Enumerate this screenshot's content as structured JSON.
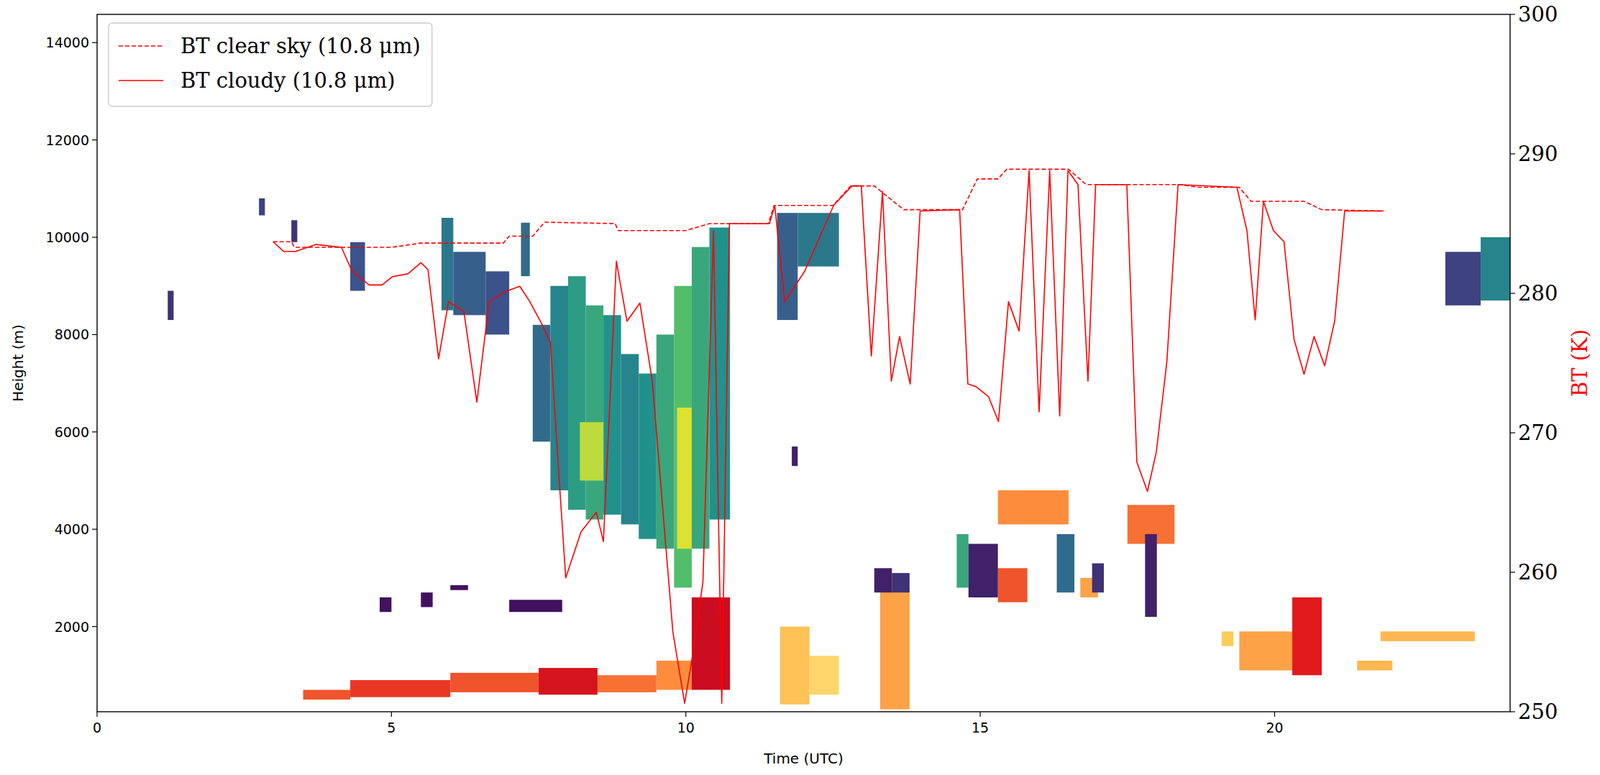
{
  "chart_data": {
    "type": "heatmap",
    "x_label": "Time (UTC)",
    "y_label": "Height (m)",
    "y2_label": "BT (K)",
    "xlim": [
      0,
      24
    ],
    "xticks": [
      0,
      5,
      10,
      15,
      20
    ],
    "ylim": [
      250,
      14580
    ],
    "yticks": [
      2000,
      4000,
      6000,
      8000,
      10000,
      12000,
      14000
    ],
    "y2lim": [
      250,
      300
    ],
    "y2ticks": [
      250,
      260,
      270,
      280,
      290,
      300
    ],
    "legend": "upper left",
    "radar_cells": [
      [
        1.2,
        1.3,
        8300,
        8900,
        0.15
      ],
      [
        2.75,
        2.85,
        10450,
        10800,
        0.2
      ],
      [
        3.3,
        3.4,
        9900,
        10350,
        0.15
      ],
      [
        4.3,
        4.55,
        8900,
        9900,
        0.25
      ],
      [
        5.85,
        6.05,
        8500,
        10400,
        0.4
      ],
      [
        6.05,
        6.6,
        8400,
        9700,
        0.3
      ],
      [
        6.6,
        7.0,
        8000,
        9300,
        0.25
      ],
      [
        7.2,
        7.35,
        9200,
        10300,
        0.35
      ],
      [
        7.4,
        7.7,
        5800,
        8200,
        0.35
      ],
      [
        7.7,
        8.0,
        4800,
        9000,
        0.45
      ],
      [
        8.0,
        8.3,
        4400,
        9200,
        0.55
      ],
      [
        8.3,
        8.6,
        4200,
        8600,
        0.6
      ],
      [
        8.6,
        8.9,
        4300,
        8400,
        0.5
      ],
      [
        8.9,
        9.2,
        4100,
        7600,
        0.45
      ],
      [
        9.2,
        9.5,
        3800,
        7200,
        0.5
      ],
      [
        9.5,
        9.8,
        3600,
        8000,
        0.6
      ],
      [
        9.8,
        10.1,
        2800,
        9000,
        0.7
      ],
      [
        10.1,
        10.4,
        3600,
        9800,
        0.6
      ],
      [
        10.4,
        10.75,
        4200,
        10200,
        0.5
      ],
      [
        8.2,
        8.6,
        5000,
        6200,
        0.9
      ],
      [
        9.85,
        10.1,
        3600,
        6500,
        0.95
      ],
      [
        11.55,
        11.9,
        8300,
        10500,
        0.3
      ],
      [
        11.9,
        12.6,
        9400,
        10500,
        0.4
      ],
      [
        11.8,
        11.9,
        5300,
        5700,
        0.1
      ],
      [
        4.8,
        5.0,
        2300,
        2600,
        0.05
      ],
      [
        5.5,
        5.7,
        2400,
        2700,
        0.05
      ],
      [
        6.0,
        6.3,
        2750,
        2850,
        0.05
      ],
      [
        7.0,
        7.9,
        2300,
        2550,
        0.05
      ],
      [
        13.2,
        13.5,
        2700,
        3200,
        0.1
      ],
      [
        13.5,
        13.8,
        2700,
        3100,
        0.15
      ],
      [
        14.6,
        14.8,
        2800,
        3900,
        0.6
      ],
      [
        14.8,
        15.3,
        2600,
        3700,
        0.1
      ],
      [
        16.3,
        16.6,
        2700,
        3900,
        0.35
      ],
      [
        16.9,
        17.1,
        2700,
        3300,
        0.15
      ],
      [
        17.8,
        18.0,
        2200,
        3900,
        0.1
      ],
      [
        22.9,
        23.5,
        8600,
        9700,
        0.2
      ],
      [
        23.5,
        24.0,
        8700,
        10000,
        0.45
      ]
    ],
    "lidar_cells": [
      [
        3.5,
        4.3,
        500,
        700,
        0.7
      ],
      [
        4.3,
        6.0,
        550,
        900,
        0.75
      ],
      [
        6.0,
        7.5,
        650,
        1050,
        0.7
      ],
      [
        7.5,
        8.5,
        600,
        1150,
        0.85
      ],
      [
        8.5,
        9.5,
        650,
        1000,
        0.65
      ],
      [
        9.5,
        10.1,
        700,
        1300,
        0.6
      ],
      [
        10.1,
        10.75,
        700,
        2600,
        0.9
      ],
      [
        11.6,
        12.1,
        400,
        2000,
        0.35
      ],
      [
        12.1,
        12.6,
        600,
        1400,
        0.25
      ],
      [
        13.3,
        13.8,
        300,
        2800,
        0.5
      ],
      [
        14.9,
        15.2,
        2600,
        3500,
        0.7
      ],
      [
        15.3,
        16.5,
        4100,
        4800,
        0.6
      ],
      [
        15.3,
        15.8,
        2500,
        3200,
        0.7
      ],
      [
        16.7,
        17.0,
        2600,
        3000,
        0.5
      ],
      [
        17.5,
        18.3,
        3700,
        4500,
        0.65
      ],
      [
        19.1,
        19.3,
        1600,
        1900,
        0.3
      ],
      [
        19.4,
        20.3,
        1100,
        1900,
        0.5
      ],
      [
        20.3,
        20.8,
        1000,
        2600,
        0.8
      ],
      [
        21.4,
        22.0,
        1100,
        1300,
        0.4
      ],
      [
        21.8,
        23.4,
        1700,
        1900,
        0.4
      ]
    ],
    "series": [
      {
        "name": "BT clear sky (10.8 μm)",
        "color": "#ff0000",
        "type": "line",
        "line_style": "dashed",
        "axis": "y2",
        "x": [
          2.99,
          3.3,
          3.35,
          5.0,
          5.5,
          6.9,
          7.0,
          7.4,
          7.6,
          8.8,
          8.85,
          10.0,
          10.4,
          11.4,
          11.5,
          12.5,
          12.8,
          13.2,
          13.7,
          14.7,
          14.95,
          15.3,
          15.45,
          16.5,
          16.8,
          18.4,
          18.7,
          19.4,
          19.6,
          20.5,
          20.8,
          21.85
        ],
        "values": [
          283.7,
          283.7,
          283.3,
          283.3,
          283.6,
          283.6,
          284.1,
          284.1,
          285.1,
          285.0,
          284.5,
          284.5,
          285.0,
          285.0,
          286.3,
          286.3,
          287.7,
          287.7,
          286.0,
          286.0,
          288.2,
          288.2,
          288.9,
          288.9,
          287.8,
          287.8,
          287.6,
          287.6,
          286.6,
          286.6,
          286.0,
          285.9
        ]
      },
      {
        "name": "BT cloudy (10.8 μm)",
        "color": "#ff0000",
        "type": "line",
        "line_style": "solid",
        "axis": "y2",
        "x": [
          2.99,
          3.17,
          3.37,
          3.72,
          4.15,
          4.33,
          4.62,
          4.84,
          5.02,
          5.28,
          5.5,
          5.62,
          5.8,
          5.97,
          6.23,
          6.45,
          6.66,
          6.92,
          7.18,
          7.35,
          7.53,
          7.7,
          7.84,
          7.96,
          8.22,
          8.48,
          8.6,
          8.82,
          9.0,
          9.22,
          9.43,
          9.78,
          9.98,
          10.12,
          10.29,
          10.47,
          10.61,
          10.74,
          11.42,
          11.51,
          11.68,
          12.02,
          12.51,
          12.82,
          12.98,
          13.15,
          13.34,
          13.49,
          13.63,
          13.81,
          13.98,
          14.65,
          14.79,
          14.93,
          15.14,
          15.31,
          15.48,
          15.66,
          15.83,
          16.0,
          16.18,
          16.35,
          16.49,
          16.66,
          16.83,
          16.96,
          17.49,
          17.66,
          17.84,
          17.99,
          18.17,
          18.36,
          19.36,
          19.53,
          19.67,
          19.81,
          19.98,
          20.16,
          20.33,
          20.5,
          20.67,
          20.85,
          21.02,
          21.19,
          21.85
        ],
        "values": [
          283.7,
          283.0,
          283.0,
          283.5,
          283.3,
          281.6,
          280.6,
          280.6,
          281.2,
          281.4,
          282.2,
          281.7,
          275.3,
          279.4,
          278.7,
          272.2,
          279.4,
          280.1,
          280.5,
          279.4,
          278.0,
          276.5,
          267.2,
          259.6,
          262.9,
          264.3,
          262.2,
          282.3,
          278.0,
          279.3,
          273.7,
          255.7,
          250.6,
          254.2,
          259.3,
          284.5,
          250.6,
          285.0,
          285.0,
          286.3,
          279.4,
          281.6,
          286.3,
          287.7,
          287.7,
          275.5,
          287.3,
          273.7,
          276.9,
          273.5,
          285.9,
          286.0,
          273.5,
          273.3,
          272.6,
          270.8,
          279.4,
          277.3,
          288.8,
          271.5,
          288.8,
          271.2,
          288.8,
          287.8,
          273.7,
          287.8,
          287.8,
          267.9,
          265.8,
          268.6,
          275.1,
          287.8,
          287.6,
          284.5,
          278.1,
          286.6,
          284.5,
          283.7,
          276.7,
          274.2,
          276.9,
          274.8,
          278.0,
          285.9,
          285.9
        ]
      }
    ]
  }
}
